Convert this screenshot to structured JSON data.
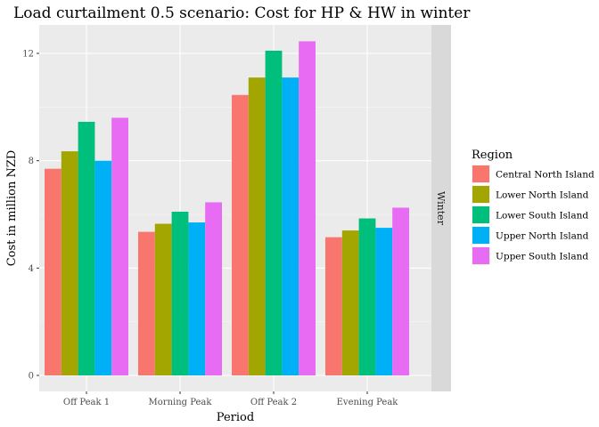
{
  "chart_data": {
    "type": "bar",
    "title": "Load curtailment 0.5 scenario: Cost for HP & HW in winter",
    "xlabel": "Period",
    "ylabel": "Cost in million NZD",
    "categories": [
      "Off Peak 1",
      "Morning Peak",
      "Off Peak 2",
      "Evening Peak"
    ],
    "series": [
      {
        "name": "Central North Island",
        "color": "#F8766D",
        "values": [
          7.7,
          5.35,
          10.45,
          5.15
        ]
      },
      {
        "name": "Lower North Island",
        "color": "#A3A500",
        "values": [
          8.35,
          5.65,
          11.1,
          5.4
        ]
      },
      {
        "name": "Lower South Island",
        "color": "#00BF7D",
        "values": [
          9.45,
          6.1,
          12.1,
          5.85
        ]
      },
      {
        "name": "Upper North Island",
        "color": "#00B0F6",
        "values": [
          8.0,
          5.7,
          11.1,
          5.5
        ]
      },
      {
        "name": "Upper South Island",
        "color": "#E76BF3",
        "values": [
          9.6,
          6.45,
          12.45,
          6.25
        ]
      }
    ],
    "ylim": [
      0,
      13.2
    ],
    "yticks": [
      0,
      4,
      8,
      12
    ],
    "legend_title": "Region",
    "legend_position": "right",
    "facet_label": "Winter",
    "grid": true
  }
}
